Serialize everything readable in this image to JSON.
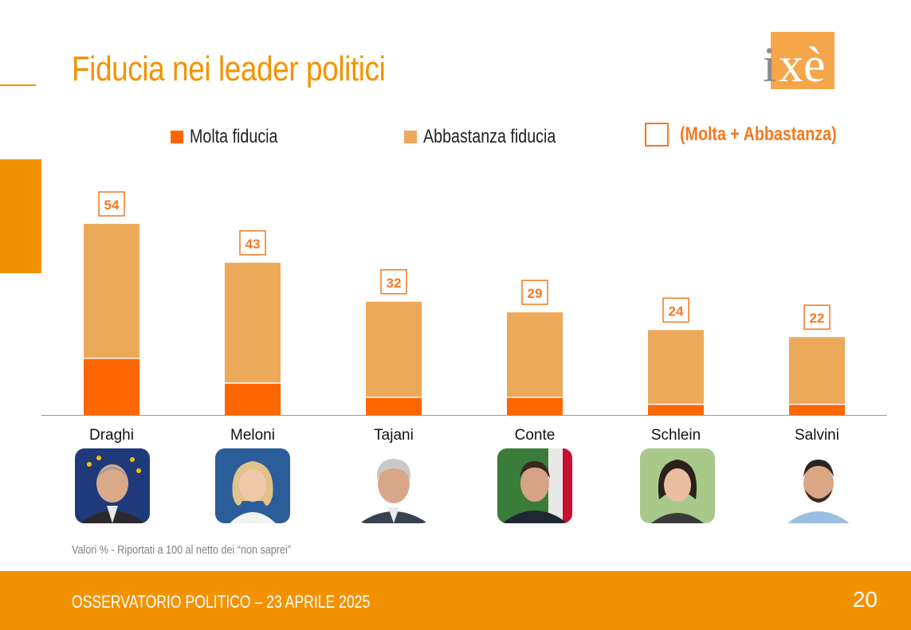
{
  "title": "Fiducia nei leader politici",
  "logo": {
    "text_i": "i",
    "text_xe": "xè"
  },
  "legend": {
    "molta": "Molta fiducia",
    "abbastanza": "Abbastanza fiducia",
    "totale": "(Molta + Abbastanza)"
  },
  "colors": {
    "accent": "#f39200",
    "molta": "#ff6600",
    "abbastanza": "#eda95a",
    "total_label": "#f47920"
  },
  "chart_data": {
    "type": "bar",
    "stacked": true,
    "categories": [
      "Draghi",
      "Meloni",
      "Tajani",
      "Conte",
      "Schlein",
      "Salvini"
    ],
    "series": [
      {
        "name": "Molta fiducia",
        "values": [
          16,
          9,
          5,
          5,
          3,
          3
        ]
      },
      {
        "name": "Abbastanza fiducia",
        "values": [
          38,
          34,
          27,
          24,
          21,
          19
        ]
      }
    ],
    "totals": [
      "54",
      "43",
      "32",
      "29",
      "24",
      "22"
    ],
    "ylim": [
      0,
      60
    ],
    "grid": false,
    "legend_position": "top"
  },
  "note": "Valori % - Riportati a 100 al netto dei “non saprei”",
  "footer": {
    "text": "OSSERVATORIO POLITICO – 23 APRILE 2025",
    "page": "20"
  }
}
